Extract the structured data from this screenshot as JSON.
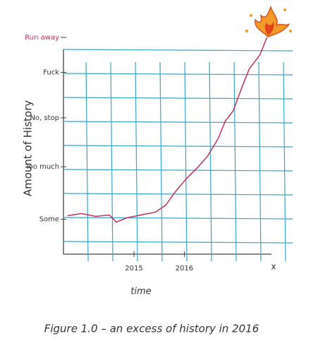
{
  "chart_data": {
    "type": "line",
    "caption": "Figure 1.0 – an excess of history in 2016",
    "y_label": "Amount of History",
    "x_label": "time",
    "x_end_label": "x",
    "xlim": [
      2013.6,
      2017.8
    ],
    "xticks": [
      2015,
      2016
    ],
    "ylim": [
      0,
      31
    ],
    "yticks": [
      {
        "value": 5,
        "label": "Some"
      },
      {
        "value": 12.5,
        "label": "Too much"
      },
      {
        "value": 19.5,
        "label": "No, stop"
      },
      {
        "value": 26,
        "label": "Fuck"
      },
      {
        "value": 31,
        "label": "Run away"
      }
    ],
    "grid": true,
    "x": [
      2013.68,
      2013.96,
      2014.24,
      2014.51,
      2014.65,
      2014.86,
      2015.14,
      2015.42,
      2015.63,
      2015.83,
      2016.04,
      2016.25,
      2016.46,
      2016.67,
      2016.81,
      2016.97,
      2017.15,
      2017.29,
      2017.5,
      2017.64
    ],
    "series": [
      {
        "color": "#c0305a",
        "values": [
          5.5,
          5.8,
          5.4,
          5.6,
          4.6,
          5.2,
          5.6,
          6.0,
          7.0,
          9.0,
          10.8,
          12.3,
          14.0,
          16.5,
          19.0,
          20.5,
          24.0,
          26.5,
          28.5,
          31.0
        ]
      }
    ]
  }
}
